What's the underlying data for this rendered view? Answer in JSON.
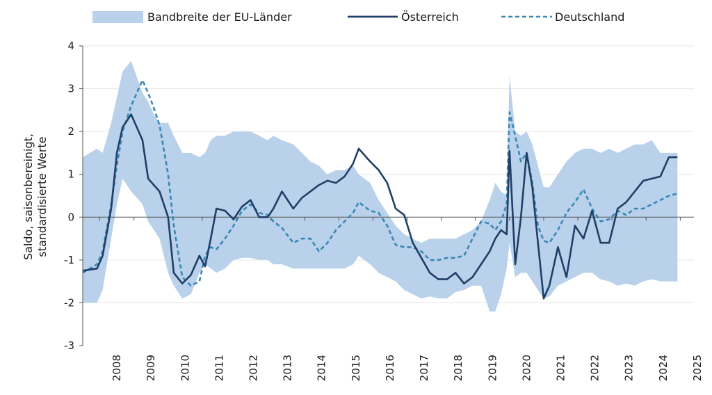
{
  "chart_data": {
    "type": "line",
    "title": "",
    "ylabel_lines": [
      "Saldo, saisonbereinigt,",
      "standardisierte Werte"
    ],
    "xlabel": "",
    "ylim": [
      -3,
      4
    ],
    "yticks": [
      -3,
      -2,
      -1,
      0,
      1,
      2,
      3,
      4
    ],
    "xticks": [
      "2008",
      "2009",
      "2010",
      "2011",
      "2012",
      "2013",
      "2014",
      "2015",
      "2016",
      "2017",
      "2018",
      "2019",
      "2020",
      "2021",
      "2022",
      "2023",
      "2024",
      "2025"
    ],
    "grid": true,
    "legend_position": "top",
    "colors": {
      "band": "#b9d1ea",
      "austria": "#1f3f66",
      "germany": "#3a87b5",
      "axis": "#555555",
      "grid": "#e6e6e6"
    },
    "x": [
      "2007-07",
      "2007-12",
      "2008-02",
      "2008-05",
      "2008-07",
      "2008-09",
      "2008-12",
      "2009-04",
      "2009-06",
      "2009-08",
      "2009-10",
      "2010-01",
      "2010-03",
      "2010-06",
      "2010-09",
      "2010-12",
      "2011-02",
      "2011-04",
      "2011-06",
      "2011-09",
      "2011-12",
      "2012-03",
      "2012-06",
      "2012-09",
      "2012-12",
      "2013-02",
      "2013-05",
      "2013-09",
      "2013-12",
      "2014-03",
      "2014-06",
      "2014-09",
      "2014-12",
      "2015-03",
      "2015-06",
      "2015-08",
      "2015-12",
      "2016-03",
      "2016-06",
      "2016-09",
      "2016-12",
      "2017-03",
      "2017-06",
      "2017-09",
      "2017-12",
      "2018-03",
      "2018-06",
      "2018-09",
      "2018-12",
      "2019-03",
      "2019-06",
      "2019-08",
      "2019-10",
      "2019-12",
      "2020-01",
      "2020-03",
      "2020-05",
      "2020-07",
      "2020-09",
      "2020-11",
      "2021-01",
      "2021-03",
      "2021-06",
      "2021-09",
      "2021-12",
      "2022-03",
      "2022-06",
      "2022-09",
      "2022-12",
      "2023-03",
      "2023-06",
      "2023-09",
      "2023-12",
      "2024-03",
      "2024-06",
      "2024-09",
      "2024-12"
    ],
    "series": [
      {
        "name": "Österreich",
        "style": "solid",
        "values": [
          -1.25,
          -1.2,
          -0.9,
          0.2,
          1.5,
          2.1,
          2.4,
          1.8,
          0.9,
          0.75,
          0.6,
          0.0,
          -1.3,
          -1.55,
          -1.35,
          -0.9,
          -1.15,
          -0.5,
          0.2,
          0.15,
          -0.05,
          0.25,
          0.4,
          0.0,
          0.0,
          0.2,
          0.6,
          0.2,
          0.45,
          0.6,
          0.75,
          0.85,
          0.8,
          0.95,
          1.25,
          1.6,
          1.3,
          1.1,
          0.8,
          0.2,
          0.05,
          -0.6,
          -0.95,
          -1.3,
          -1.45,
          -1.45,
          -1.3,
          -1.55,
          -1.4,
          -1.1,
          -0.8,
          -0.5,
          -0.3,
          -0.4,
          1.55,
          -1.1,
          0.0,
          1.5,
          0.7,
          -0.6,
          -1.9,
          -1.6,
          -0.7,
          -1.4,
          -0.2,
          -0.5,
          0.15,
          -0.6,
          -0.6,
          0.2,
          0.35,
          0.6,
          0.85,
          0.9,
          0.95,
          1.4,
          1.4
        ]
      },
      {
        "name": "Deutschland",
        "style": "dashed",
        "values": [
          -1.3,
          -1.1,
          -0.8,
          0.3,
          1.2,
          2.0,
          2.6,
          3.2,
          2.9,
          2.55,
          2.15,
          1.0,
          -0.2,
          -1.4,
          -1.6,
          -1.5,
          -0.9,
          -0.7,
          -0.75,
          -0.5,
          -0.2,
          0.15,
          0.3,
          0.1,
          0.05,
          -0.1,
          -0.25,
          -0.6,
          -0.5,
          -0.5,
          -0.8,
          -0.6,
          -0.3,
          -0.1,
          0.1,
          0.35,
          0.15,
          0.1,
          -0.2,
          -0.65,
          -0.7,
          -0.7,
          -0.8,
          -1.0,
          -1.0,
          -0.95,
          -0.95,
          -0.9,
          -0.5,
          -0.1,
          -0.15,
          -0.3,
          -0.1,
          0.3,
          2.45,
          1.9,
          1.3,
          1.5,
          0.8,
          -0.2,
          -0.55,
          -0.6,
          -0.3,
          0.1,
          0.35,
          0.65,
          0.2,
          -0.1,
          -0.05,
          0.15,
          0.05,
          0.2,
          0.2,
          0.3,
          0.4,
          0.5,
          0.55
        ]
      },
      {
        "name": "Bandbreite der EU-Länder",
        "style": "band",
        "lower": [
          -2.0,
          -2.0,
          -1.7,
          -0.5,
          0.3,
          0.9,
          0.6,
          0.3,
          -0.1,
          -0.3,
          -0.5,
          -1.3,
          -1.6,
          -1.9,
          -1.8,
          -1.3,
          -1.1,
          -1.2,
          -1.3,
          -1.2,
          -1.0,
          -0.95,
          -0.95,
          -1.0,
          -1.0,
          -1.1,
          -1.1,
          -1.2,
          -1.2,
          -1.2,
          -1.2,
          -1.2,
          -1.2,
          -1.2,
          -1.1,
          -0.9,
          -1.1,
          -1.3,
          -1.4,
          -1.5,
          -1.7,
          -1.8,
          -1.9,
          -1.85,
          -1.9,
          -1.9,
          -1.75,
          -1.7,
          -1.6,
          -1.6,
          -2.2,
          -2.2,
          -1.8,
          -1.2,
          -0.6,
          -1.4,
          -1.3,
          -1.3,
          -1.5,
          -1.7,
          -1.9,
          -1.85,
          -1.6,
          -1.5,
          -1.4,
          -1.3,
          -1.3,
          -1.45,
          -1.5,
          -1.6,
          -1.55,
          -1.6,
          -1.5,
          -1.45,
          -1.5,
          -1.5,
          -1.5
        ],
        "upper": [
          1.4,
          1.6,
          1.5,
          2.2,
          2.8,
          3.4,
          3.65,
          2.9,
          2.7,
          2.4,
          2.2,
          2.2,
          1.9,
          1.5,
          1.5,
          1.4,
          1.5,
          1.8,
          1.9,
          1.9,
          2.0,
          2.0,
          2.0,
          1.9,
          1.8,
          1.9,
          1.8,
          1.7,
          1.5,
          1.3,
          1.2,
          1.0,
          1.1,
          1.1,
          1.2,
          1.0,
          0.8,
          0.4,
          0.1,
          -0.2,
          -0.4,
          -0.5,
          -0.6,
          -0.5,
          -0.5,
          -0.5,
          -0.5,
          -0.4,
          -0.3,
          -0.1,
          0.4,
          0.8,
          0.6,
          0.5,
          3.3,
          2.0,
          1.9,
          2.0,
          1.7,
          1.2,
          0.7,
          0.7,
          1.0,
          1.3,
          1.5,
          1.6,
          1.6,
          1.5,
          1.6,
          1.5,
          1.6,
          1.7,
          1.7,
          1.8,
          1.5,
          1.5,
          1.5
        ]
      }
    ]
  }
}
